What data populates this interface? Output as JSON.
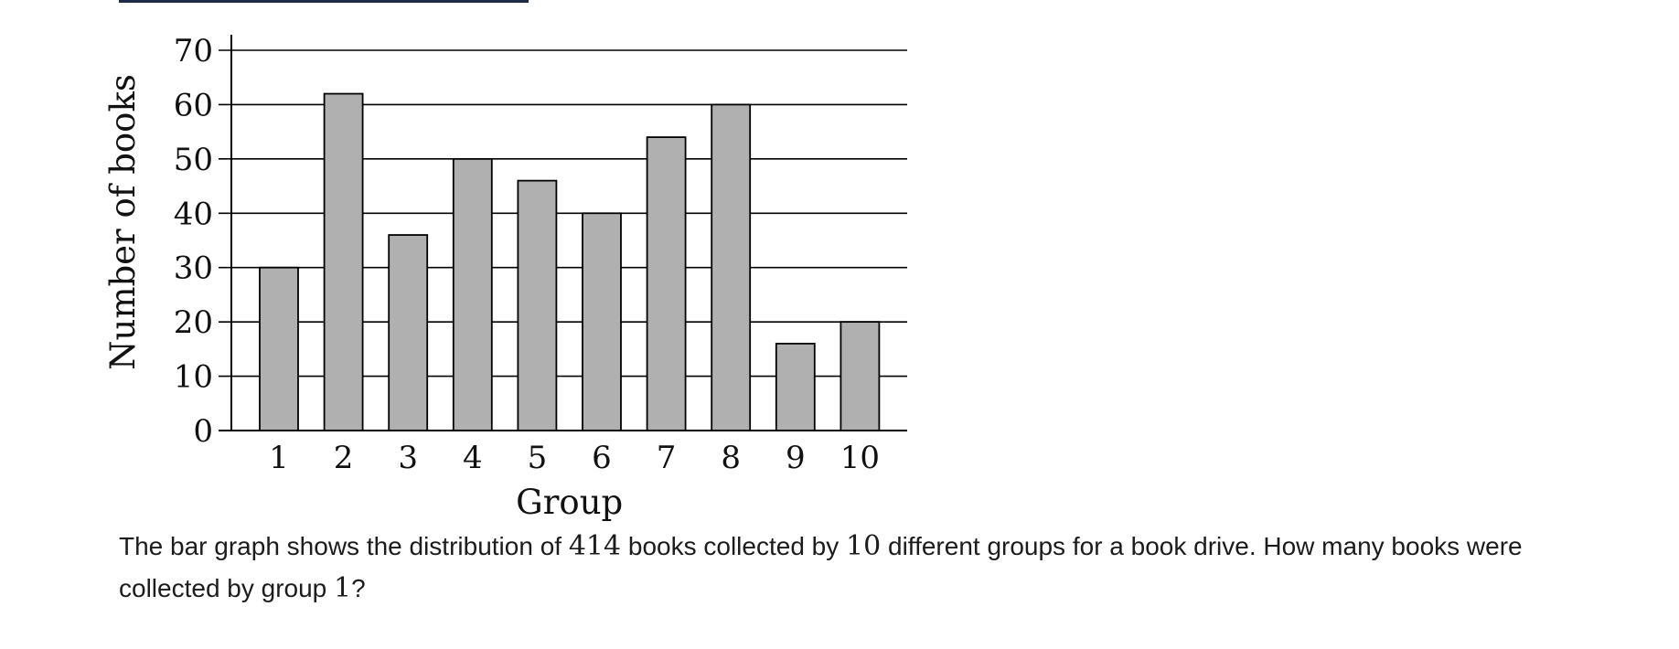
{
  "chart_data": {
    "type": "bar",
    "categories": [
      "1",
      "2",
      "3",
      "4",
      "5",
      "6",
      "7",
      "8",
      "9",
      "10"
    ],
    "values": [
      30,
      62,
      36,
      50,
      46,
      40,
      54,
      60,
      16,
      20
    ],
    "title": "",
    "xlabel": "Group",
    "ylabel": "Number of books",
    "ylim": [
      0,
      70
    ],
    "yticks": [
      0,
      10,
      20,
      30,
      40,
      50,
      60,
      70
    ],
    "grid": true,
    "bar_color": "#b0b0b0",
    "edge_color": "#000000"
  },
  "question": {
    "part1": "The bar graph shows the distribution of ",
    "total": "414",
    "part2": " books collected by ",
    "groups": "10",
    "part3": " different groups for a book drive. How many books were collected by group ",
    "group_num": "1",
    "part4": "?"
  },
  "colors": {
    "top_rule": "#1f2a44"
  }
}
